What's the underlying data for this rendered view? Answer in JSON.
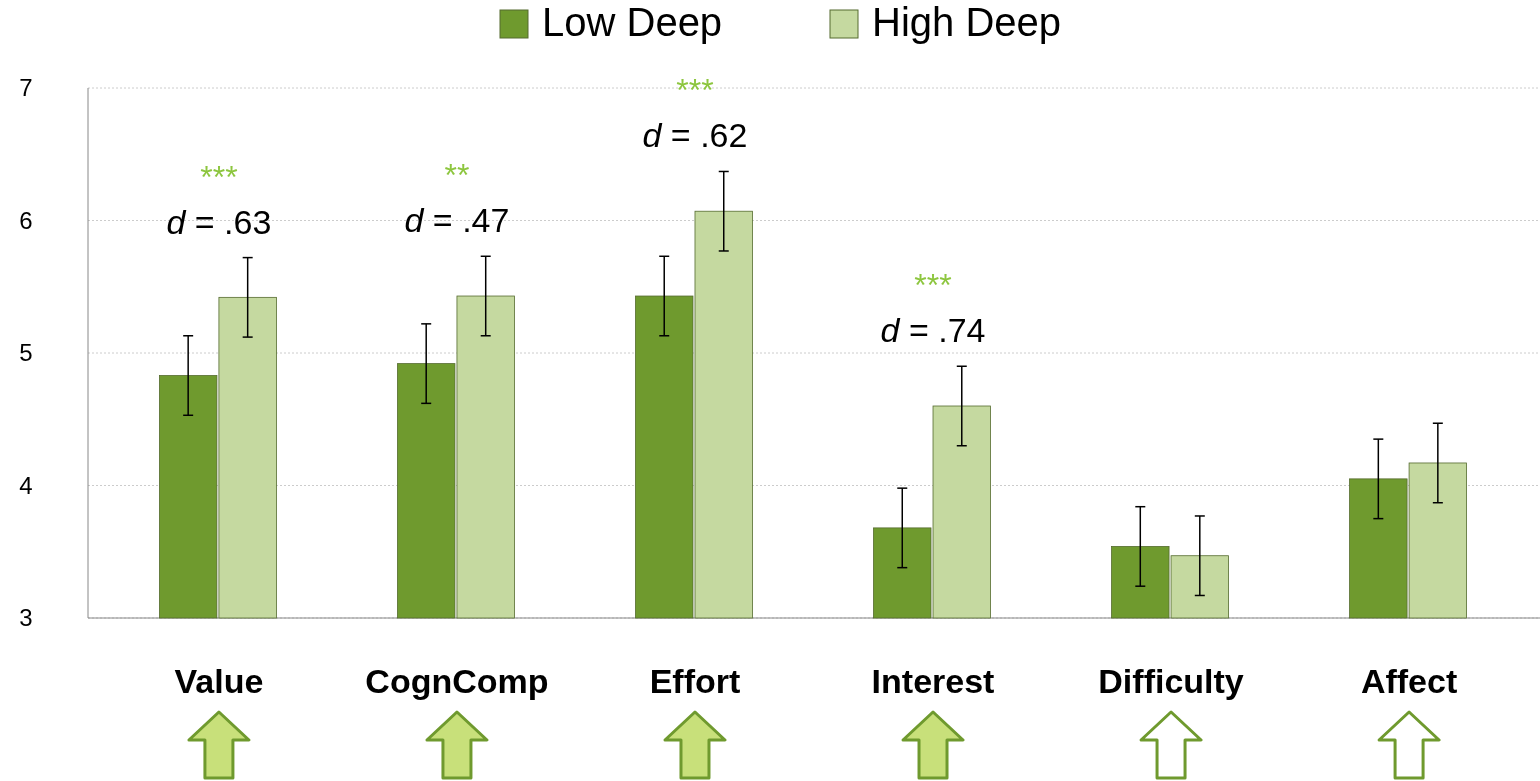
{
  "chart_data": {
    "type": "bar",
    "categories": [
      "Value",
      "CognComp",
      "Effort",
      "Interest",
      "Difficulty",
      "Affect"
    ],
    "series": [
      {
        "name": "Low Deep",
        "color": "#6f9a2e",
        "values": [
          4.83,
          4.92,
          5.43,
          3.68,
          3.54,
          4.05
        ],
        "errors": [
          0.3,
          0.3,
          0.3,
          0.3,
          0.3,
          0.3
        ]
      },
      {
        "name": "High Deep",
        "color": "#c5d9a0",
        "values": [
          5.42,
          5.43,
          6.07,
          4.6,
          3.47,
          4.17
        ],
        "errors": [
          0.3,
          0.3,
          0.3,
          0.3,
          0.3,
          0.3
        ]
      }
    ],
    "ylim": [
      3,
      7
    ],
    "yticks": [
      3,
      4,
      5,
      6,
      7
    ],
    "grid": "y",
    "legend": "top",
    "annotations": [
      "***",
      "d = .63",
      "**",
      "d = .47",
      "***",
      "d = .62",
      "***",
      "d = .74"
    ]
  }
}
